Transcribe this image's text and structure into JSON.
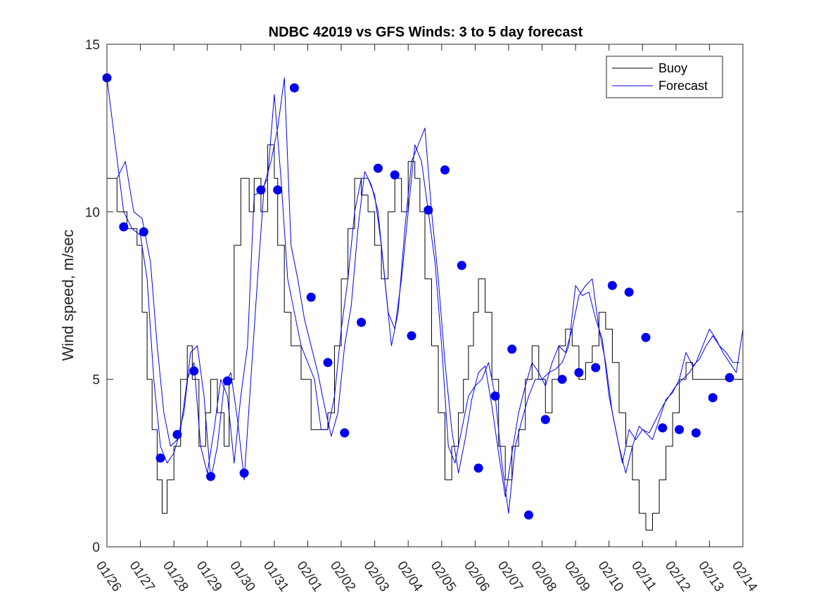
{
  "chart_data": {
    "type": "line",
    "title": "NDBC 42019 vs GFS Winds: 3 to 5 day forecast",
    "xlabel": "",
    "ylabel": "Wind speed, m/sec",
    "xlim": [
      0,
      19
    ],
    "ylim": [
      0,
      15
    ],
    "y_ticks": [
      0,
      5,
      10,
      15
    ],
    "x_tick_labels": [
      "01/26",
      "01/27",
      "01/28",
      "01/29",
      "01/30",
      "01/31",
      "02/01",
      "02/02",
      "02/03",
      "02/04",
      "02/05",
      "02/06",
      "02/07",
      "02/08",
      "02/09",
      "02/10",
      "02/11",
      "02/12",
      "02/13",
      "02/14"
    ],
    "legend": [
      {
        "label": "Buoy",
        "color": "#000000"
      },
      {
        "label": "Forecast",
        "color": "#0000ee"
      }
    ],
    "legend_position": "top-right",
    "series": [
      {
        "name": "Buoy",
        "color": "#000000",
        "x": [
          0,
          0.3,
          0.6,
          0.9,
          1.05,
          1.2,
          1.35,
          1.5,
          1.65,
          1.8,
          2.0,
          2.2,
          2.4,
          2.55,
          2.75,
          2.95,
          3.1,
          3.3,
          3.5,
          3.65,
          3.8,
          4.0,
          4.25,
          4.4,
          4.6,
          4.8,
          5.0,
          5.1,
          5.3,
          5.5,
          5.8,
          6.1,
          6.4,
          6.6,
          6.8,
          7.0,
          7.2,
          7.4,
          7.6,
          7.8,
          8.0,
          8.2,
          8.4,
          8.6,
          8.8,
          9.0,
          9.2,
          9.35,
          9.5,
          9.7,
          9.9,
          10.1,
          10.3,
          10.5,
          10.65,
          10.8,
          10.95,
          11.1,
          11.3,
          11.5,
          11.7,
          11.9,
          12.1,
          12.3,
          12.5,
          12.7,
          12.9,
          13.1,
          13.3,
          13.5,
          13.7,
          13.9,
          14.1,
          14.3,
          14.5,
          14.7,
          14.9,
          15.1,
          15.3,
          15.5,
          15.7,
          15.9,
          16.1,
          16.3,
          16.5,
          16.7,
          16.9,
          17.1,
          17.3,
          17.5,
          17.7,
          17.9,
          18.1,
          18.3,
          18.5,
          18.7,
          18.9,
          19.0
        ],
        "y": [
          11,
          10,
          9.5,
          9,
          7,
          5,
          3.5,
          2,
          1,
          2,
          3,
          5,
          6,
          5,
          3,
          4,
          5,
          4,
          3,
          5,
          9,
          11,
          10,
          11,
          10,
          12,
          11,
          9,
          7,
          6,
          5,
          3.5,
          3.5,
          4,
          6,
          8,
          9.5,
          11,
          10.5,
          10,
          9,
          8,
          10,
          11,
          10,
          11.5,
          11,
          10,
          8,
          6,
          4,
          2,
          3,
          4,
          5,
          6,
          7,
          8,
          7,
          5,
          3,
          2,
          3,
          3.5,
          5,
          6,
          5,
          4,
          5,
          6,
          6.5,
          6,
          5,
          5.5,
          6,
          7,
          6.5,
          5.5,
          4,
          3,
          2,
          1,
          0.5,
          1,
          2,
          3,
          4,
          5,
          5.5,
          5,
          5,
          5,
          5,
          5,
          5,
          5,
          5,
          5
        ]
      },
      {
        "name": "Forecast",
        "color": "#0000ee",
        "x": [
          0,
          0.25,
          0.5,
          0.75,
          1.0,
          1.2,
          1.4,
          1.6,
          1.8,
          2.0,
          2.2,
          2.4,
          2.6,
          2.8,
          3.0,
          3.2,
          3.4,
          3.6,
          3.8,
          4.0,
          4.2,
          4.4,
          4.6,
          4.8,
          5.0,
          5.2,
          5.4,
          5.6,
          5.8,
          6.0,
          6.2,
          6.4,
          6.6,
          6.8,
          7.0,
          7.2,
          7.4,
          7.6,
          7.8,
          8.0,
          8.2,
          8.4,
          8.6,
          8.8,
          9.0,
          9.2,
          9.4,
          9.6,
          9.8,
          10.0,
          10.2,
          10.4,
          10.6,
          10.8,
          11.0,
          11.2,
          11.4,
          11.6,
          11.8,
          12.0,
          12.2,
          12.4,
          12.6,
          12.8,
          13.0,
          13.2,
          13.4,
          13.6,
          13.8,
          14.0,
          14.2,
          14.4,
          14.6,
          14.8,
          15.0,
          15.2,
          15.4,
          15.6,
          15.8,
          16.0,
          16.2,
          16.4,
          16.6,
          16.8,
          17.0,
          17.2,
          17.4,
          17.6,
          17.8,
          18.0,
          18.2,
          18.4,
          18.6,
          18.8,
          19.0
        ],
        "y": [
          14,
          12,
          10,
          9.5,
          9.3,
          8,
          5,
          3,
          2.5,
          2.8,
          3.5,
          5,
          5.5,
          3,
          2.2,
          3.5,
          5,
          4.5,
          2.5,
          4.5,
          6,
          10.5,
          10.6,
          11,
          13.5,
          11,
          8,
          7,
          6,
          5.5,
          5,
          3.5,
          3.5,
          4.5,
          6.5,
          8,
          10,
          11,
          11,
          10.5,
          9,
          7,
          6.5,
          8,
          10,
          12,
          11.5,
          10,
          8.5,
          6,
          3,
          2.5,
          3.5,
          4.5,
          4.8,
          5,
          5.5,
          4.5,
          2.5,
          1,
          3,
          3.8,
          4.5,
          5,
          5,
          5.2,
          5.3,
          5.5,
          6,
          7.8,
          7.5,
          7.6,
          6.8,
          6.2,
          4.5,
          3.5,
          2.5,
          3.5,
          3.2,
          3.5,
          3.4,
          3.8,
          4.2,
          4.5,
          4.8,
          5,
          5.2,
          5.5,
          6,
          6.5,
          6.2,
          5.8,
          5.5,
          5.2,
          6.5
        ]
      },
      {
        "name": "Forecast",
        "color": "#0000ee",
        "x": [
          0.3,
          0.55,
          0.8,
          1.05,
          1.3,
          1.5,
          1.7,
          1.9,
          2.1,
          2.3,
          2.5,
          2.7,
          2.9,
          3.1,
          3.3,
          3.5,
          3.7,
          3.9,
          4.1,
          4.3,
          4.5,
          4.7,
          4.9,
          5.1,
          5.3,
          5.5,
          5.7,
          5.9,
          6.1,
          6.3,
          6.5,
          6.7,
          6.9,
          7.1,
          7.3,
          7.5,
          7.7,
          7.9,
          8.1,
          8.3,
          8.5,
          8.7,
          8.9,
          9.1,
          9.3,
          9.5,
          9.7,
          9.9,
          10.1,
          10.3,
          10.5,
          10.7,
          10.9,
          11.1,
          11.3,
          11.5,
          11.7,
          11.9,
          12.1,
          12.3,
          12.5,
          12.7,
          12.9,
          13.1,
          13.3,
          13.5,
          13.7,
          13.9,
          14.1,
          14.3,
          14.5,
          14.7,
          14.9,
          15.1,
          15.3,
          15.5,
          15.7,
          15.9,
          16.1,
          16.3,
          16.5,
          16.7,
          16.9,
          17.1,
          17.3,
          17.5,
          17.7,
          17.9,
          18.1,
          18.3,
          18.5,
          18.7,
          18.9
        ],
        "y": [
          11,
          11.5,
          10,
          9.8,
          8.5,
          6,
          4,
          3,
          3.2,
          4,
          5.8,
          6,
          4.5,
          2,
          3,
          4.8,
          5.2,
          3.8,
          2,
          5,
          8,
          10.8,
          11.5,
          12.5,
          14,
          9,
          8,
          6.8,
          6,
          5.2,
          4.2,
          3.3,
          4,
          6,
          7.2,
          9.5,
          11.2,
          10.8,
          10,
          8,
          6,
          7,
          9.5,
          11.5,
          12,
          12.5,
          10,
          8,
          5.5,
          3.5,
          2.2,
          3.2,
          4.4,
          5.2,
          5.4,
          4.2,
          2.8,
          1.5,
          2.8,
          4,
          4.8,
          5.5,
          5.2,
          4.8,
          5.5,
          6,
          5.8,
          6.5,
          7.5,
          7.8,
          8,
          6.5,
          5.5,
          4,
          3,
          2.2,
          3,
          3.6,
          3.4,
          3.2,
          3.8,
          4.4,
          4.6,
          5,
          5.8,
          5.4,
          5.6,
          6,
          6.3,
          6,
          5.8,
          5.5,
          5.5
        ]
      }
    ],
    "markers": {
      "name": "Forecast",
      "color": "#0000ee",
      "x": [
        0.0,
        0.5,
        1.1,
        1.6,
        2.1,
        2.6,
        3.1,
        3.6,
        4.1,
        4.6,
        5.1,
        5.6,
        6.1,
        6.6,
        7.1,
        7.6,
        8.1,
        8.6,
        9.1,
        9.6,
        10.1,
        10.6,
        11.1,
        11.6,
        12.1,
        12.6,
        13.1,
        13.6,
        14.1,
        14.6,
        15.1,
        15.6,
        16.1,
        16.6,
        17.1,
        17.6,
        18.1,
        18.6
      ],
      "y": [
        14.0,
        9.55,
        9.4,
        2.65,
        3.35,
        5.25,
        2.1,
        4.95,
        2.2,
        10.65,
        10.65,
        13.7,
        7.45,
        5.5,
        3.4,
        6.7,
        11.3,
        11.1,
        6.3,
        10.05,
        11.25,
        8.4,
        2.35,
        4.5,
        5.9,
        0.95,
        3.8,
        5.0,
        5.2,
        5.35,
        7.8,
        7.6,
        6.25,
        3.55,
        3.5,
        3.4,
        4.45,
        5.05
      ]
    }
  }
}
